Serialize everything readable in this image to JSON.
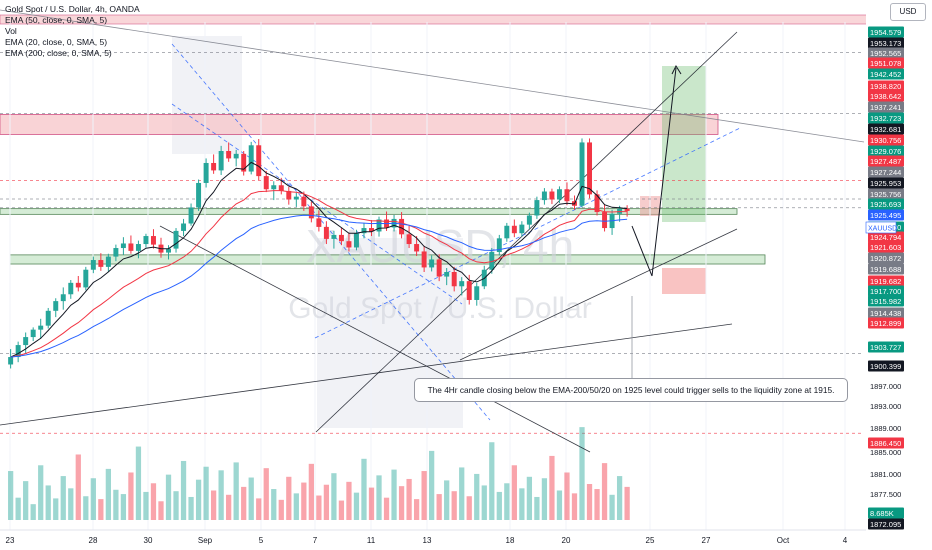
{
  "header": {
    "title": "Gold Spot / U.S. Dollar, 4h, OANDA",
    "indicators": [
      "EMA (50, close, 0, SMA, 5)",
      "Vol",
      "EMA (20, close, 0, SMA, 5)",
      "EMA (200, close, 0, SMA, 5)"
    ]
  },
  "currency_button": "USD",
  "watermark": {
    "symbol": "XAUUSD, 4h",
    "name": "Gold Spot / U.S. Dollar"
  },
  "annotation": "The 4Hr candle closing below the EMA-200/50/20 on 1925 level could trigger sells to the liquidity zone at 1915.",
  "colors": {
    "up": "#26a69a",
    "down": "#f23645",
    "ema20": "#131722",
    "ema50": "#2962ff",
    "ema200": "#f23645",
    "zone_green": "#c8e6c9",
    "zone_red": "#f7c5c9",
    "axis_text": "#131722"
  },
  "chart_data": {
    "type": "candlestick",
    "symbol": "XAUUSD",
    "timeframe": "4h",
    "ylim": [
      1869.5,
      1958.5
    ],
    "x_tick_labels": [
      "23",
      "28",
      "30",
      "Sep",
      "5",
      "7",
      "11",
      "13",
      "18",
      "20",
      "25",
      "27",
      "Oct",
      "4"
    ],
    "price_axis_labels": [
      {
        "value": "1954.579",
        "kind": "green"
      },
      {
        "value": "1953.173",
        "kind": "dark"
      },
      {
        "value": "1952.565",
        "kind": "gray"
      },
      {
        "value": "1951.078",
        "kind": "red"
      },
      {
        "value": "1942.452",
        "kind": "green"
      },
      {
        "value": "1938.820",
        "kind": "red"
      },
      {
        "value": "1938.642",
        "kind": "red"
      },
      {
        "value": "1937.241",
        "kind": "gray"
      },
      {
        "value": "1932.723",
        "kind": "green"
      },
      {
        "value": "1932.681",
        "kind": "dark"
      },
      {
        "value": "1930.756",
        "kind": "red"
      },
      {
        "value": "1929.076",
        "kind": "green"
      },
      {
        "value": "1927.487",
        "kind": "red"
      },
      {
        "value": "1927.244",
        "kind": "gray"
      },
      {
        "value": "1925.953",
        "kind": "dark"
      },
      {
        "value": "1925.756",
        "kind": "gray"
      },
      {
        "value": "1925.693",
        "kind": "green"
      },
      {
        "value": "1925.495",
        "kind": "blue"
      },
      {
        "value": "1925.430",
        "kind": "green"
      },
      {
        "value": "1924.794",
        "kind": "red"
      },
      {
        "value": "1921.603",
        "kind": "red"
      },
      {
        "value": "1920.872",
        "kind": "gray"
      },
      {
        "value": "1919.688",
        "kind": "gray"
      },
      {
        "value": "1919.682",
        "kind": "red"
      },
      {
        "value": "1917.700",
        "kind": "green"
      },
      {
        "value": "1915.982",
        "kind": "green"
      },
      {
        "value": "1914.438",
        "kind": "gray"
      },
      {
        "value": "1912.899",
        "kind": "red"
      },
      {
        "value": "1903.727",
        "kind": "green"
      },
      {
        "value": "1900.399",
        "kind": "dark"
      },
      {
        "value": "1897.000",
        "kind": "plain"
      },
      {
        "value": "1893.000",
        "kind": "plain"
      },
      {
        "value": "1889.000",
        "kind": "plain"
      },
      {
        "value": "1886.450",
        "kind": "red"
      },
      {
        "value": "1885.000",
        "kind": "plain"
      },
      {
        "value": "1881.000",
        "kind": "plain"
      },
      {
        "value": "1877.500",
        "kind": "plain"
      },
      {
        "value": "8.685K",
        "kind": "green"
      },
      {
        "value": "1872.095",
        "kind": "dark"
      }
    ],
    "symbol_tag": "XAUUSD",
    "zones": [
      {
        "kind": "supply",
        "low": 1938.8,
        "high": 1942.3
      },
      {
        "kind": "ema_zone",
        "low": 1924.8,
        "high": 1925.8
      },
      {
        "kind": "liquidity",
        "low": 1916.1,
        "high": 1917.7
      }
    ],
    "candles": [
      [
        1898.5,
        1901.2,
        1897.8,
        1899.8
      ],
      [
        1899.8,
        1902.5,
        1898.9,
        1901.9
      ],
      [
        1901.9,
        1904.1,
        1900.5,
        1903.3
      ],
      [
        1903.3,
        1905.0,
        1902.6,
        1904.6
      ],
      [
        1904.6,
        1906.5,
        1903.0,
        1905.3
      ],
      [
        1905.3,
        1908.4,
        1904.8,
        1907.9
      ],
      [
        1907.9,
        1910.1,
        1906.8,
        1909.6
      ],
      [
        1909.6,
        1912.0,
        1908.1,
        1910.8
      ],
      [
        1910.8,
        1913.3,
        1910.0,
        1912.8
      ],
      [
        1912.8,
        1914.0,
        1911.3,
        1912.0
      ],
      [
        1912.0,
        1915.6,
        1911.5,
        1915.1
      ],
      [
        1915.1,
        1917.4,
        1914.5,
        1916.8
      ],
      [
        1916.8,
        1918.0,
        1914.9,
        1915.6
      ],
      [
        1915.6,
        1917.9,
        1914.8,
        1917.4
      ],
      [
        1917.4,
        1919.5,
        1916.6,
        1918.9
      ],
      [
        1918.9,
        1920.8,
        1917.7,
        1919.7
      ],
      [
        1919.7,
        1921.1,
        1917.9,
        1918.4
      ],
      [
        1918.4,
        1920.2,
        1917.1,
        1919.6
      ],
      [
        1919.6,
        1921.4,
        1919.0,
        1921.0
      ],
      [
        1921.0,
        1922.2,
        1918.8,
        1919.5
      ],
      [
        1919.5,
        1920.7,
        1917.2,
        1918.1
      ],
      [
        1918.1,
        1919.4,
        1916.9,
        1918.8
      ],
      [
        1918.8,
        1922.4,
        1918.1,
        1921.9
      ],
      [
        1921.9,
        1924.0,
        1921.0,
        1923.2
      ],
      [
        1923.2,
        1926.7,
        1922.8,
        1926.0
      ],
      [
        1926.0,
        1930.9,
        1925.4,
        1930.3
      ],
      [
        1930.3,
        1934.6,
        1929.5,
        1933.8
      ],
      [
        1933.8,
        1935.3,
        1931.9,
        1932.5
      ],
      [
        1932.5,
        1936.8,
        1931.7,
        1935.9
      ],
      [
        1935.9,
        1937.4,
        1934.0,
        1934.6
      ],
      [
        1934.6,
        1936.1,
        1933.2,
        1935.4
      ],
      [
        1935.4,
        1935.9,
        1931.6,
        1932.3
      ],
      [
        1932.3,
        1937.5,
        1931.8,
        1936.9
      ],
      [
        1936.9,
        1938.0,
        1930.8,
        1931.5
      ],
      [
        1931.5,
        1932.4,
        1928.7,
        1929.2
      ],
      [
        1929.2,
        1930.6,
        1927.3,
        1929.9
      ],
      [
        1929.9,
        1931.2,
        1928.3,
        1928.9
      ],
      [
        1928.9,
        1929.6,
        1926.5,
        1927.4
      ],
      [
        1927.4,
        1928.6,
        1926.1,
        1927.9
      ],
      [
        1927.9,
        1928.8,
        1925.4,
        1926.2
      ],
      [
        1926.2,
        1927.0,
        1923.4,
        1924.1
      ],
      [
        1924.1,
        1925.5,
        1921.8,
        1922.6
      ],
      [
        1922.6,
        1923.6,
        1919.6,
        1920.5
      ],
      [
        1920.5,
        1921.9,
        1918.8,
        1921.2
      ],
      [
        1921.2,
        1922.4,
        1919.4,
        1920.1
      ],
      [
        1920.1,
        1921.6,
        1918.3,
        1919.0
      ],
      [
        1919.0,
        1922.1,
        1918.5,
        1921.5
      ],
      [
        1921.5,
        1923.2,
        1920.6,
        1922.4
      ],
      [
        1922.4,
        1923.8,
        1921.0,
        1921.8
      ],
      [
        1921.8,
        1924.4,
        1920.9,
        1923.9
      ],
      [
        1923.9,
        1925.3,
        1921.9,
        1922.5
      ],
      [
        1922.5,
        1924.7,
        1921.8,
        1924.0
      ],
      [
        1924.0,
        1925.2,
        1920.6,
        1921.3
      ],
      [
        1921.3,
        1922.8,
        1918.9,
        1919.6
      ],
      [
        1919.6,
        1921.0,
        1917.5,
        1918.3
      ],
      [
        1918.3,
        1919.3,
        1914.7,
        1915.5
      ],
      [
        1915.5,
        1917.6,
        1914.8,
        1916.9
      ],
      [
        1916.9,
        1917.8,
        1913.1,
        1913.9
      ],
      [
        1913.9,
        1915.4,
        1912.4,
        1914.7
      ],
      [
        1914.7,
        1915.6,
        1911.3,
        1912.2
      ],
      [
        1912.2,
        1913.8,
        1910.6,
        1913.1
      ],
      [
        1913.1,
        1914.2,
        1909.0,
        1909.8
      ],
      [
        1909.8,
        1912.8,
        1908.8,
        1912.2
      ],
      [
        1912.2,
        1915.8,
        1911.7,
        1915.1
      ],
      [
        1915.1,
        1918.9,
        1914.4,
        1918.2
      ],
      [
        1918.2,
        1921.2,
        1917.6,
        1920.6
      ],
      [
        1920.6,
        1923.3,
        1920.0,
        1922.8
      ],
      [
        1922.8,
        1923.9,
        1920.8,
        1921.5
      ],
      [
        1921.5,
        1923.6,
        1920.9,
        1923.0
      ],
      [
        1923.0,
        1925.1,
        1922.2,
        1924.6
      ],
      [
        1924.6,
        1927.9,
        1924.0,
        1927.3
      ],
      [
        1927.3,
        1929.4,
        1926.5,
        1928.8
      ],
      [
        1928.8,
        1929.3,
        1926.6,
        1927.4
      ],
      [
        1927.4,
        1929.7,
        1926.8,
        1929.2
      ],
      [
        1929.2,
        1930.4,
        1926.4,
        1927.1
      ],
      [
        1927.1,
        1928.1,
        1925.6,
        1926.3
      ],
      [
        1926.3,
        1938.1,
        1926.0,
        1937.4
      ],
      [
        1937.4,
        1938.1,
        1927.6,
        1928.3
      ],
      [
        1928.3,
        1929.0,
        1924.6,
        1925.2
      ],
      [
        1925.2,
        1926.5,
        1921.8,
        1922.4
      ],
      [
        1922.4,
        1925.6,
        1921.2,
        1924.9
      ],
      [
        1924.9,
        1926.3,
        1923.5,
        1925.8
      ],
      [
        1925.8,
        1926.4,
        1924.4,
        1925.4
      ]
    ],
    "volume": [
      6.8,
      3.1,
      5.4,
      2.2,
      7.6,
      4.8,
      3.0,
      6.1,
      4.4,
      9.1,
      3.3,
      5.8,
      2.9,
      7.1,
      4.2,
      3.6,
      6.6,
      10.2,
      3.9,
      5.1,
      2.6,
      6.3,
      4.0,
      8.2,
      3.2,
      5.6,
      7.4,
      4.1,
      6.9,
      3.5,
      8.0,
      4.6,
      5.9,
      3.0,
      7.2,
      4.3,
      2.8,
      6.0,
      3.7,
      5.2,
      7.8,
      3.4,
      4.9,
      6.5,
      2.7,
      5.3,
      3.8,
      8.5,
      4.5,
      6.2,
      3.1,
      7.0,
      4.7,
      5.7,
      2.9,
      6.8,
      9.6,
      3.6,
      5.5,
      4.0,
      7.3,
      3.3,
      6.4,
      4.8,
      10.8,
      3.9,
      5.1,
      7.6,
      4.4,
      6.0,
      3.2,
      5.8,
      8.9,
      4.1,
      6.6,
      3.7,
      12.9,
      5.0,
      4.3,
      7.9,
      3.5,
      6.1,
      4.6
    ]
  }
}
